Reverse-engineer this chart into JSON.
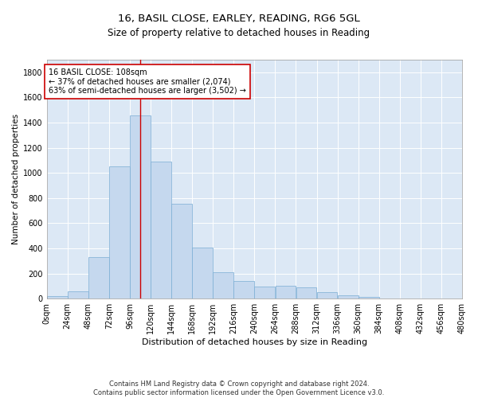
{
  "title1": "16, BASIL CLOSE, EARLEY, READING, RG6 5GL",
  "title2": "Size of property relative to detached houses in Reading",
  "xlabel": "Distribution of detached houses by size in Reading",
  "ylabel": "Number of detached properties",
  "footnote": "Contains HM Land Registry data © Crown copyright and database right 2024.\nContains public sector information licensed under the Open Government Licence v3.0.",
  "bin_edges": [
    0,
    24,
    48,
    72,
    96,
    120,
    144,
    168,
    192,
    216,
    240,
    264,
    288,
    312,
    336,
    360,
    384,
    408,
    432,
    456,
    480
  ],
  "bar_heights": [
    18,
    58,
    330,
    1050,
    1460,
    1090,
    755,
    410,
    210,
    140,
    100,
    105,
    88,
    50,
    28,
    12,
    5,
    5,
    2,
    1
  ],
  "bar_color": "#c5d8ee",
  "bar_edge_color": "#7aadd4",
  "property_size": 108,
  "property_label": "16 BASIL CLOSE: 108sqm",
  "annotation_line1": "← 37% of detached houses are smaller (2,074)",
  "annotation_line2": "63% of semi-detached houses are larger (3,502) →",
  "vline_color": "#cc0000",
  "annotation_box_edge": "#cc0000",
  "ylim": [
    0,
    1900
  ],
  "yticks": [
    0,
    200,
    400,
    600,
    800,
    1000,
    1200,
    1400,
    1600,
    1800
  ],
  "bg_color": "#ffffff",
  "plot_bg_color": "#dce8f5",
  "grid_color": "#ffffff",
  "title1_fontsize": 9.5,
  "title2_fontsize": 8.5,
  "xlabel_fontsize": 8,
  "ylabel_fontsize": 7.5,
  "tick_fontsize": 7,
  "annotation_fontsize": 7,
  "footnote_fontsize": 6
}
